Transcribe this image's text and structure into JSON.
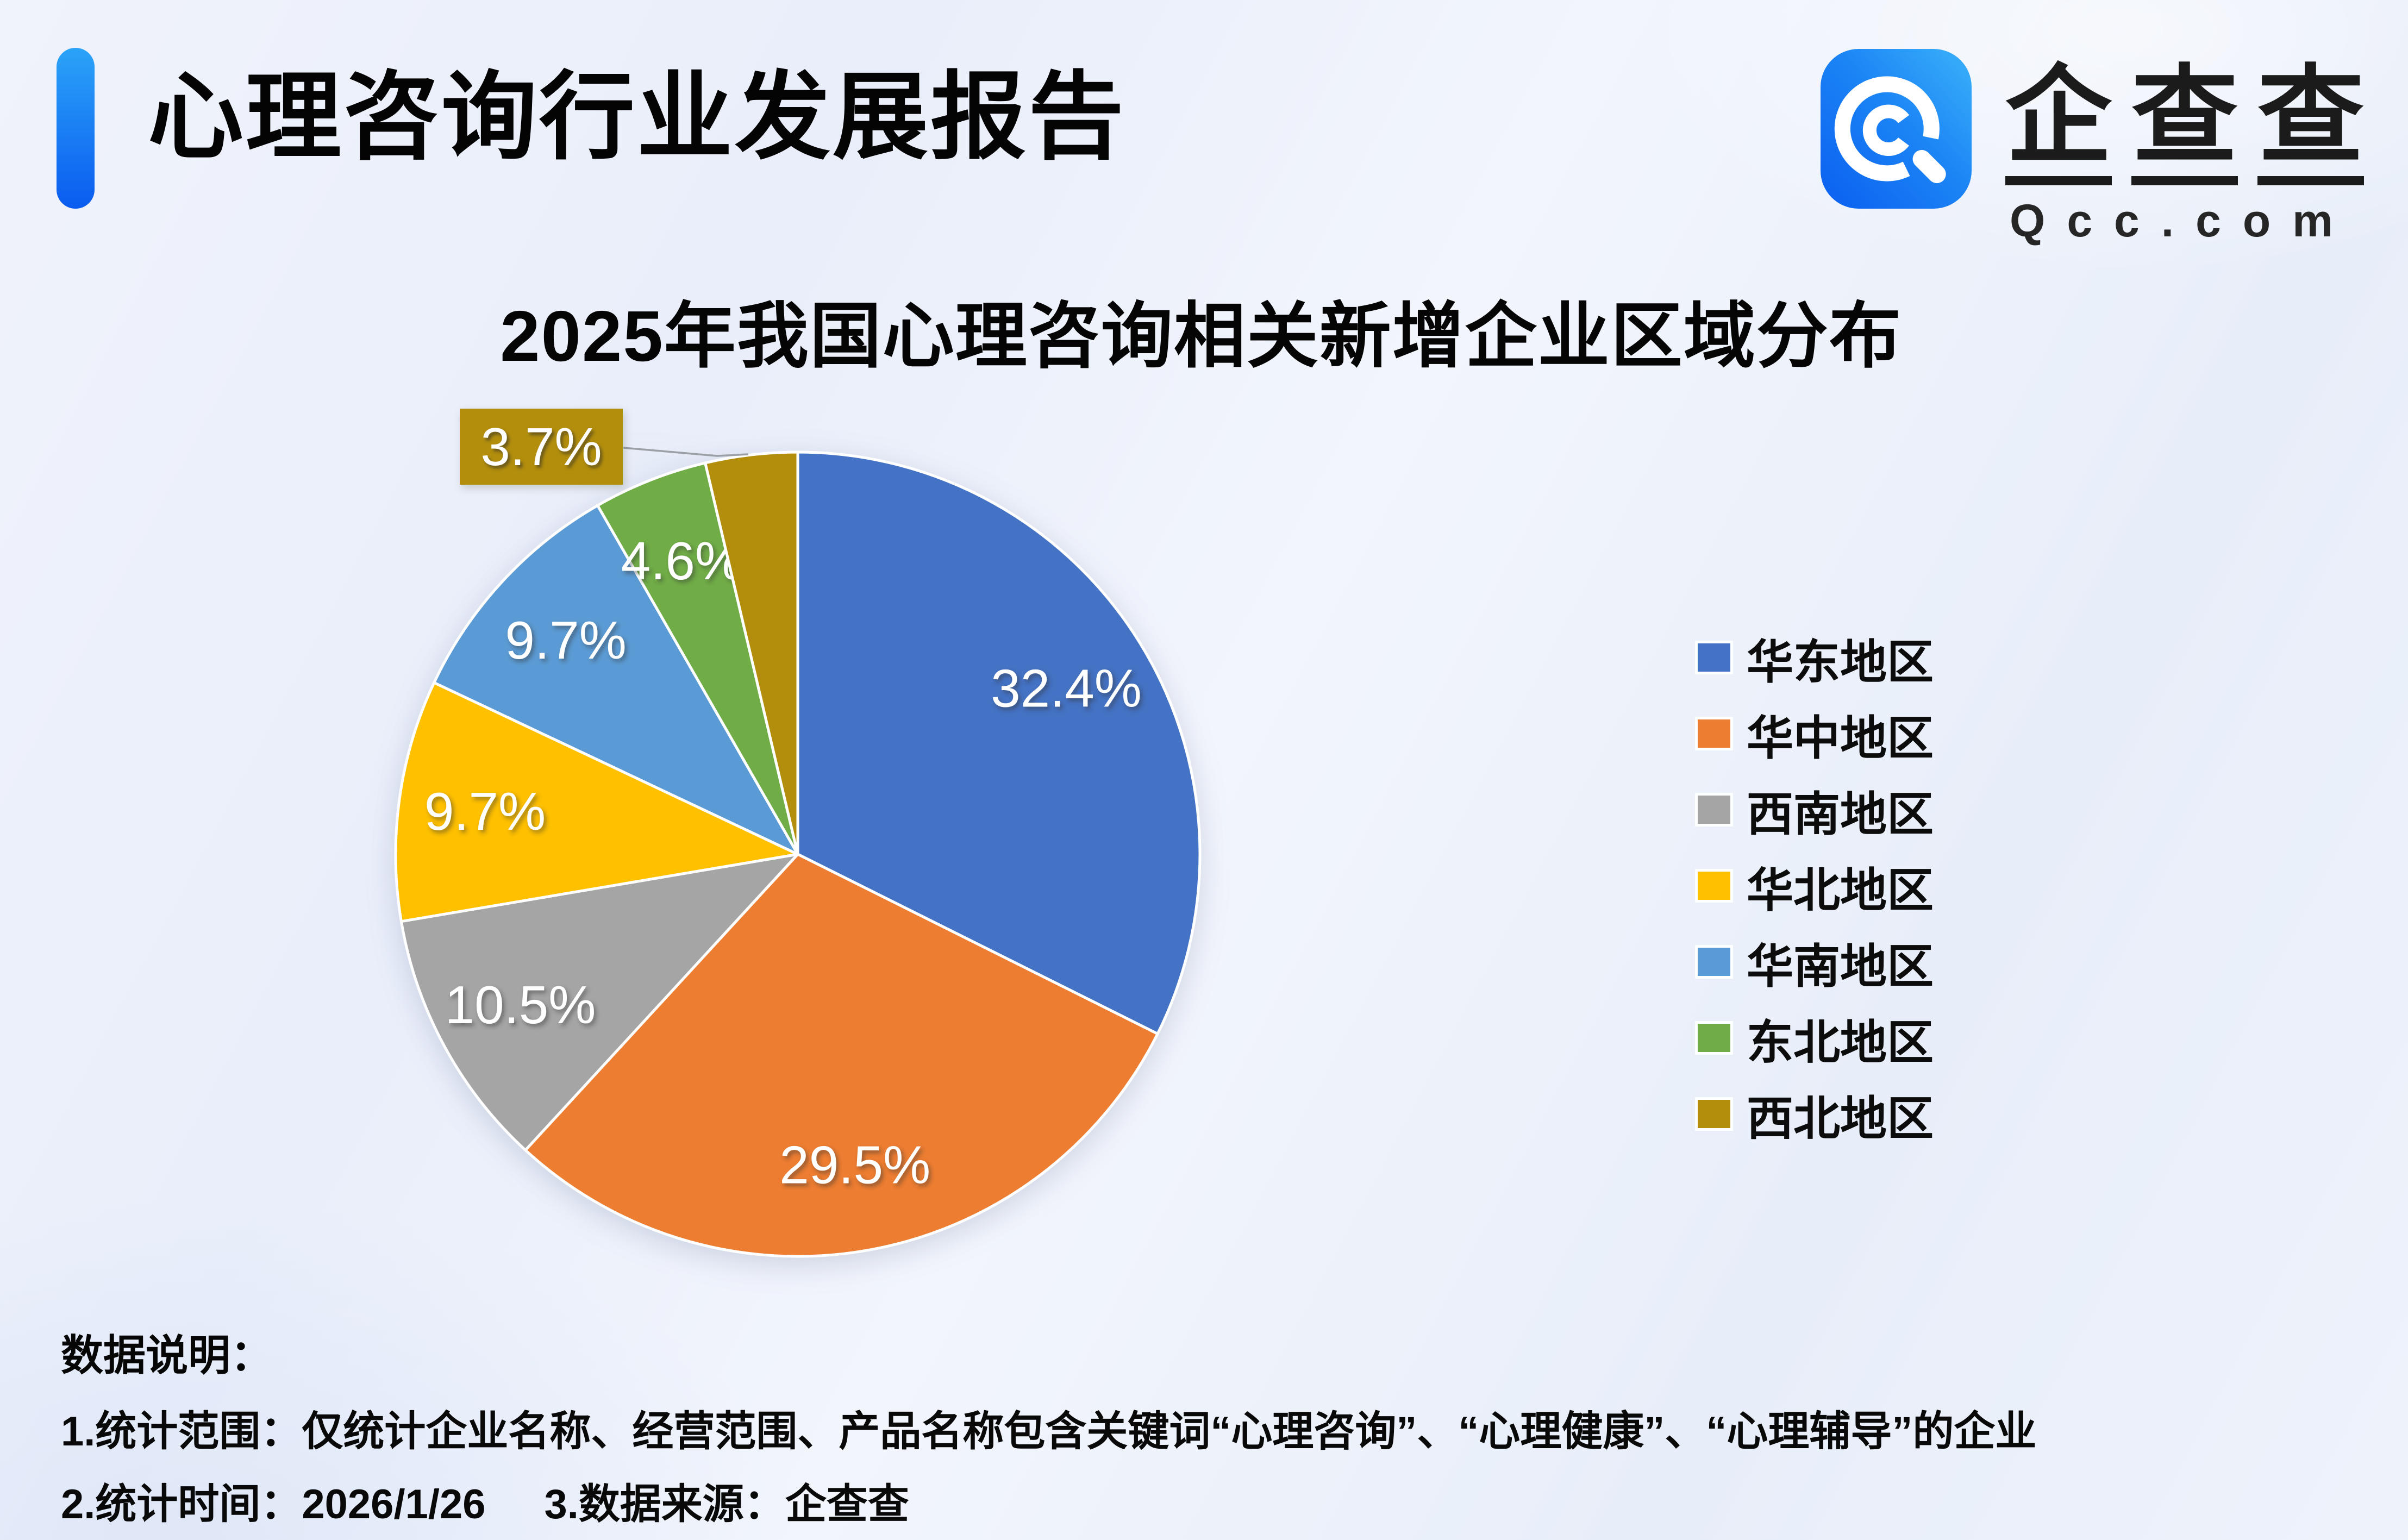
{
  "header": {
    "report_title": "心理咨询行业发展报告",
    "logo": {
      "chars": [
        "企",
        "查",
        "查"
      ],
      "domain": "Qcc.com",
      "brand_blue": "#1c85f5"
    }
  },
  "chart_data": {
    "type": "pie",
    "title": "2025年我国心理咨询相关新增企业区域分布",
    "unit": "%",
    "legend_position": "right",
    "start_angle": "12-oclock-clockwise",
    "slices": [
      {
        "name": "华东地区",
        "value": 32.4,
        "label": "32.4%",
        "color": "#4472C4"
      },
      {
        "name": "华中地区",
        "value": 29.5,
        "label": "29.5%",
        "color": "#ED7D31"
      },
      {
        "name": "西南地区",
        "value": 10.5,
        "label": "10.5%",
        "color": "#A5A5A5"
      },
      {
        "name": "华北地区",
        "value": 9.7,
        "label": "9.7%",
        "color": "#FFC000"
      },
      {
        "name": "华南地区",
        "value": 9.7,
        "label": "9.7%",
        "color": "#5B9BD5"
      },
      {
        "name": "东北地区",
        "value": 4.6,
        "label": "4.6%",
        "color": "#70AD47"
      },
      {
        "name": "西北地区",
        "value": 3.7,
        "label": "3.7%",
        "color": "#B38E0D",
        "external_label": true
      }
    ]
  },
  "footer": {
    "notes_title": "数据说明：",
    "note1": "1.统计范围：仅统计企业名称、经营范围、产品名称包含关键词“心理咨询”、“心理健康”、“心理辅导”的企业",
    "note2_time": "2.统计时间：2026/1/26",
    "note2_source": "3.数据来源：企查查"
  }
}
